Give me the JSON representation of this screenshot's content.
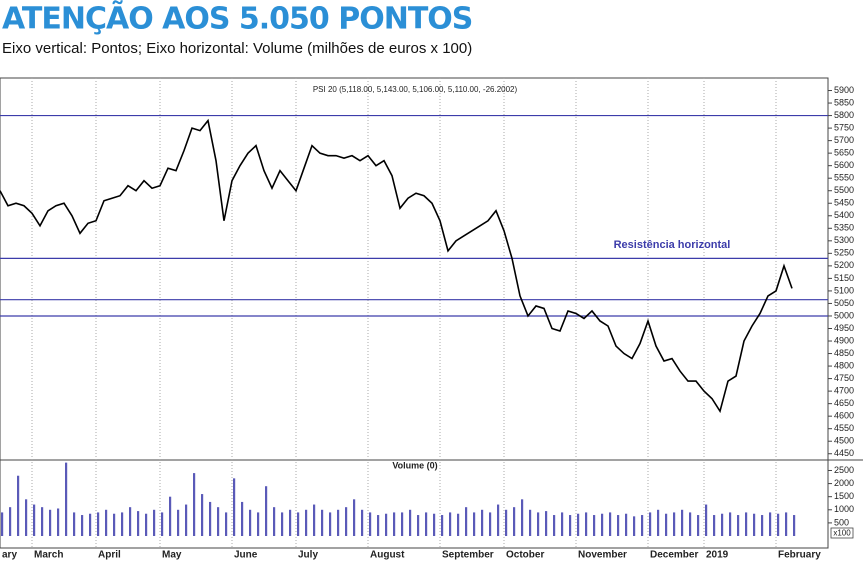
{
  "title": "ATENÇÃO AOS 5.050 PONTOS",
  "subtitle": "Eixo vertical: Pontos; Eixo horizontal: Volume (milhões de euros x 100)",
  "chart_data": [
    {
      "type": "line",
      "title": "PSI 20 (5,118.00, 5,143.00, 5,106.00, 5,110.00, -26.2002)",
      "color": "#000000",
      "values": [
        5500,
        5440,
        5450,
        5440,
        5410,
        5360,
        5420,
        5440,
        5450,
        5400,
        5330,
        5370,
        5380,
        5460,
        5470,
        5480,
        5520,
        5500,
        5540,
        5510,
        5520,
        5590,
        5580,
        5660,
        5750,
        5740,
        5780,
        5620,
        5380,
        5540,
        5600,
        5650,
        5680,
        5580,
        5510,
        5580,
        5540,
        5500,
        5590,
        5680,
        5650,
        5640,
        5640,
        5630,
        5640,
        5620,
        5640,
        5600,
        5620,
        5560,
        5430,
        5470,
        5490,
        5480,
        5450,
        5380,
        5260,
        5300,
        5320,
        5340,
        5360,
        5380,
        5420,
        5340,
        5230,
        5080,
        5000,
        5040,
        5030,
        4950,
        4940,
        5020,
        5010,
        4990,
        5020,
        4980,
        4960,
        4880,
        4850,
        4830,
        4890,
        4980,
        4880,
        4820,
        4830,
        4780,
        4740,
        4740,
        4700,
        4670,
        4620,
        4740,
        4760,
        4900,
        4960,
        5010,
        5080,
        5100,
        5200,
        5110
      ],
      "ylim": [
        4425,
        5950
      ],
      "yticks": [
        4450,
        4500,
        4550,
        4600,
        4650,
        4700,
        4750,
        4800,
        4850,
        4900,
        4950,
        5000,
        5050,
        5100,
        5150,
        5200,
        5250,
        5300,
        5350,
        5400,
        5450,
        5500,
        5550,
        5600,
        5650,
        5700,
        5750,
        5800,
        5850,
        5900
      ],
      "reference_lines": [
        5800,
        5230,
        5065,
        5000
      ],
      "reference_color": "#3c3caa",
      "annotation": "Resistência horizontal"
    },
    {
      "type": "bar",
      "title": "Volume (0)",
      "color": "#5a5ab8",
      "categories": [
        "ary",
        null,
        null,
        null,
        "March",
        null,
        null,
        null,
        null,
        null,
        null,
        null,
        "April",
        null,
        null,
        null,
        null,
        null,
        null,
        null,
        "May",
        null,
        null,
        null,
        null,
        null,
        null,
        null,
        null,
        "June",
        null,
        null,
        null,
        null,
        null,
        null,
        null,
        "July",
        null,
        null,
        null,
        null,
        null,
        null,
        null,
        null,
        "August",
        null,
        null,
        null,
        null,
        null,
        null,
        null,
        null,
        "September",
        null,
        null,
        null,
        null,
        null,
        null,
        null,
        "October",
        null,
        null,
        null,
        null,
        null,
        null,
        null,
        null,
        "November",
        null,
        null,
        null,
        null,
        null,
        null,
        null,
        null,
        "December",
        null,
        null,
        null,
        null,
        null,
        null,
        "2019",
        null,
        null,
        null,
        null,
        null,
        null,
        null,
        null,
        "February",
        null,
        null
      ],
      "values": [
        900,
        1100,
        2300,
        1400,
        1200,
        1100,
        1000,
        1050,
        2800,
        900,
        800,
        850,
        900,
        1000,
        850,
        900,
        1100,
        950,
        850,
        1000,
        900,
        1500,
        1000,
        1200,
        2400,
        1600,
        1300,
        1100,
        900,
        2200,
        1300,
        1000,
        900,
        1900,
        1100,
        900,
        1000,
        900,
        1000,
        1200,
        1000,
        900,
        1000,
        1100,
        1400,
        1000,
        900,
        800,
        850,
        900,
        900,
        1000,
        800,
        900,
        850,
        800,
        900,
        850,
        1100,
        900,
        1000,
        900,
        1200,
        1000,
        1100,
        1400,
        1000,
        900,
        950,
        800,
        900,
        800,
        850,
        900,
        800,
        850,
        900,
        800,
        850,
        750,
        800,
        900,
        1000,
        850,
        900,
        1000,
        900,
        800,
        1200,
        800,
        850,
        900,
        800,
        900,
        850,
        800,
        900,
        850,
        900,
        800
      ],
      "ylim": [
        0,
        2900
      ],
      "yticks": [
        500,
        1000,
        1500,
        2000,
        2500
      ],
      "unit_label": "x100"
    }
  ]
}
